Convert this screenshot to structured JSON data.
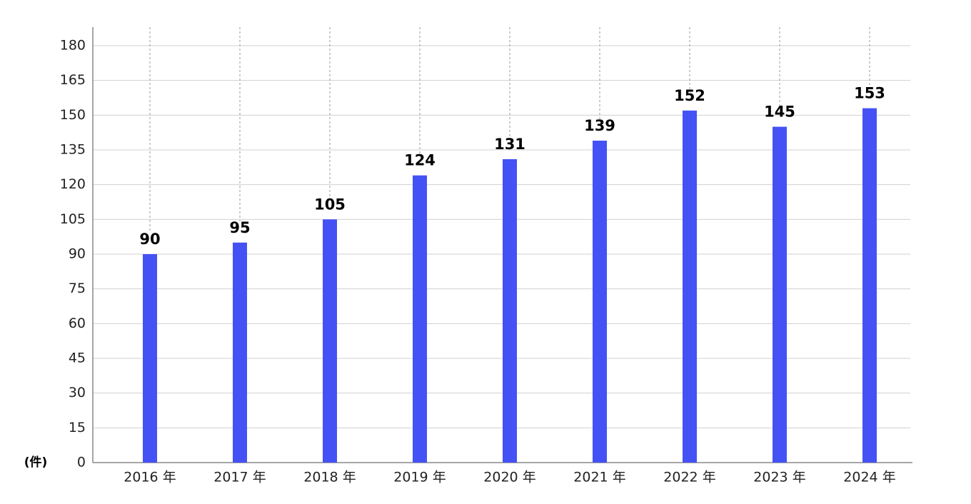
{
  "chart_data": {
    "type": "bar",
    "unit_label": "(件)",
    "categories": [
      "2016 年",
      "2017 年",
      "2018 年",
      "2019 年",
      "2020 年",
      "2021 年",
      "2022 年",
      "2023 年",
      "2024 年"
    ],
    "values": [
      90,
      95,
      105,
      124,
      131,
      139,
      152,
      145,
      153
    ],
    "color": "#4452f5",
    "ylim": [
      0,
      180
    ],
    "yticks": [
      0,
      15,
      30,
      45,
      60,
      75,
      90,
      105,
      120,
      135,
      150,
      165,
      180
    ],
    "grid": true
  }
}
